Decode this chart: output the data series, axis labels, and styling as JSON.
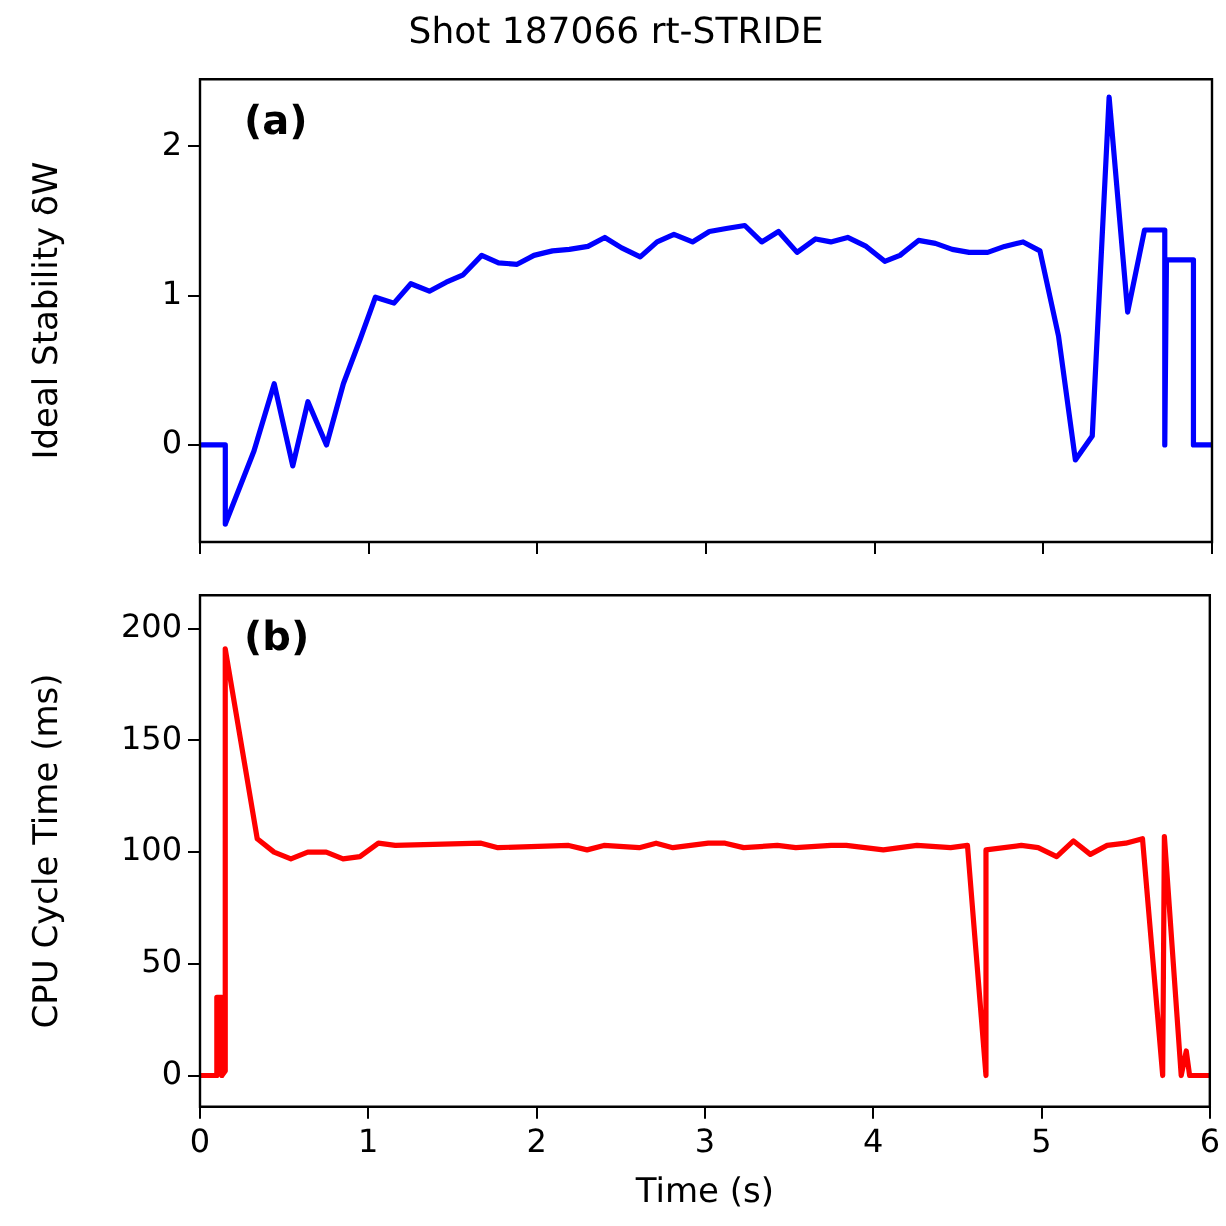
{
  "chart_data": [
    {
      "type": "line",
      "title": "Shot 187066 rt-STRIDE",
      "ylabel": "Ideal Stability δW",
      "annotations": [
        "(a)"
      ],
      "tick_labels": "y",
      "grid": false,
      "legend": false,
      "marker": "none",
      "line_style": "solid",
      "xlim": [
        0,
        6
      ],
      "xticks": [
        0,
        1,
        2,
        3,
        4,
        5,
        6
      ],
      "ylim": [
        -0.65,
        2.45
      ],
      "yticks": [
        0,
        1,
        2
      ],
      "series": [
        {
          "color": "#0000ff",
          "x": [
            0.01,
            0.15,
            0.15,
            0.32,
            0.44,
            0.55,
            0.64,
            0.75,
            0.85,
            0.95,
            1.04,
            1.15,
            1.25,
            1.36,
            1.46,
            1.56,
            1.67,
            1.77,
            1.88,
            1.98,
            2.09,
            2.19,
            2.3,
            2.4,
            2.5,
            2.61,
            2.71,
            2.81,
            2.92,
            3.02,
            3.12,
            3.23,
            3.33,
            3.43,
            3.54,
            3.65,
            3.74,
            3.84,
            3.95,
            4.06,
            4.15,
            4.26,
            4.36,
            4.46,
            4.56,
            4.67,
            4.77,
            4.88,
            4.98,
            5.09,
            5.19,
            5.29,
            5.39,
            5.5,
            5.6,
            5.72,
            5.72,
            5.73,
            5.89,
            5.89,
            6.0
          ],
          "values": [
            0,
            0,
            -0.53,
            -0.04,
            0.41,
            -0.14,
            0.29,
            0,
            0.41,
            0.71,
            0.99,
            0.95,
            1.08,
            1.03,
            1.09,
            1.14,
            1.27,
            1.22,
            1.21,
            1.27,
            1.3,
            1.31,
            1.33,
            1.39,
            1.32,
            1.26,
            1.36,
            1.41,
            1.36,
            1.43,
            1.45,
            1.47,
            1.36,
            1.43,
            1.29,
            1.38,
            1.36,
            1.39,
            1.33,
            1.23,
            1.27,
            1.37,
            1.35,
            1.31,
            1.29,
            1.29,
            1.33,
            1.36,
            1.3,
            0.73,
            -0.1,
            0.06,
            2.33,
            0.89,
            1.44,
            1.44,
            0,
            1.24,
            1.24,
            0,
            0
          ]
        }
      ]
    },
    {
      "type": "line",
      "xlabel": "Time (s)",
      "ylabel": "CPU Cycle Time (ms)",
      "annotations": [
        "(b)"
      ],
      "grid": false,
      "legend": false,
      "marker": "none",
      "line_style": "solid",
      "xlim": [
        0,
        6
      ],
      "xticks": [
        0,
        1,
        2,
        3,
        4,
        5,
        6
      ],
      "ylim": [
        -14,
        215
      ],
      "yticks": [
        0,
        50,
        100,
        150,
        200
      ],
      "series": [
        {
          "color": "#ff0000",
          "x": [
            0.01,
            0.1,
            0.1,
            0.13,
            0.13,
            0.15,
            0.15,
            0.34,
            0.44,
            0.54,
            0.64,
            0.75,
            0.85,
            0.95,
            1.06,
            1.16,
            1.67,
            1.77,
            2.19,
            2.3,
            2.4,
            2.61,
            2.71,
            2.81,
            3.02,
            3.12,
            3.23,
            3.43,
            3.54,
            3.75,
            3.84,
            4.06,
            4.26,
            4.46,
            4.56,
            4.67,
            4.67,
            4.88,
            4.98,
            5.09,
            5.19,
            5.29,
            5.39,
            5.5,
            5.6,
            5.72,
            5.73,
            5.83,
            5.86,
            5.88,
            6.0
          ],
          "values": [
            0,
            0,
            35,
            35,
            0,
            2,
            191,
            106,
            100,
            97,
            100,
            100,
            97,
            98,
            104,
            103,
            104,
            102,
            103,
            101,
            103,
            102,
            104,
            102,
            104,
            104,
            102,
            103,
            102,
            103,
            103,
            101,
            103,
            102,
            103,
            0,
            101,
            103,
            102,
            98,
            105,
            99,
            103,
            104,
            106,
            0,
            107,
            0,
            11,
            0,
            0
          ]
        }
      ]
    }
  ]
}
